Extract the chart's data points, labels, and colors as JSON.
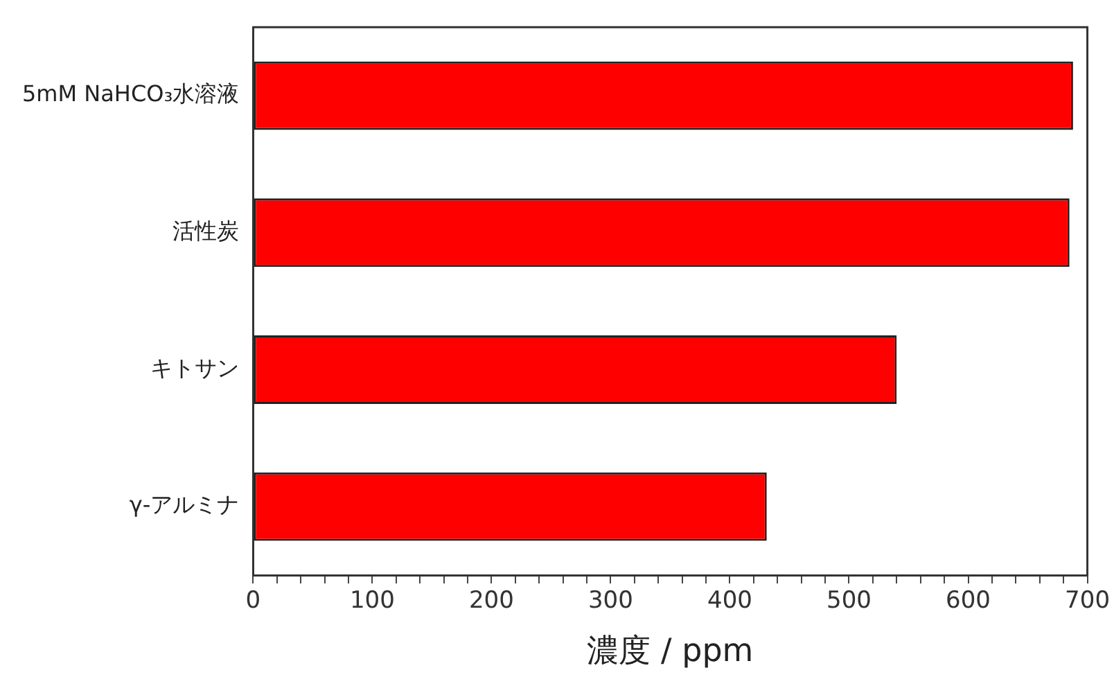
{
  "chart_data": {
    "type": "bar",
    "orientation": "horizontal",
    "xlabel": "濃度 / ppm",
    "categories": [
      "5mM NaHCO₃水溶液",
      "活性炭",
      "キトサン",
      "γ-アルミナ"
    ],
    "values": [
      688,
      685,
      540,
      431
    ],
    "color": "#ff0000",
    "xlim": [
      0,
      700
    ],
    "xticks": [
      0,
      {
        "value": 20,
        "label": null
      },
      {
        "value": 40,
        "label": null
      },
      {
        "value": 60,
        "label": null
      },
      {
        "value": 80,
        "label": null
      },
      100,
      {
        "value": 120,
        "label": null
      },
      {
        "value": 140,
        "label": null
      },
      {
        "value": 160,
        "label": null
      },
      {
        "value": 180,
        "label": null
      },
      200,
      {
        "value": 220,
        "label": null
      },
      {
        "value": 240,
        "label": null
      },
      {
        "value": 260,
        "label": null
      },
      {
        "value": 280,
        "label": null
      },
      300,
      {
        "value": 320,
        "label": null
      },
      {
        "value": 340,
        "label": null
      },
      {
        "value": 360,
        "label": null
      },
      {
        "value": 380,
        "label": null
      },
      400,
      {
        "value": 420,
        "label": null
      },
      {
        "value": 440,
        "label": null
      },
      {
        "value": 460,
        "label": null
      },
      {
        "value": 480,
        "label": null
      },
      500,
      {
        "value": 520,
        "label": null
      },
      {
        "value": 540,
        "label": null
      },
      {
        "value": 560,
        "label": null
      },
      {
        "value": 580,
        "label": null
      },
      600,
      {
        "value": 620,
        "label": null
      },
      {
        "value": 640,
        "label": null
      },
      {
        "value": 660,
        "label": null
      },
      {
        "value": 680,
        "label": null
      },
      700
    ],
    "grid": false,
    "legend": false
  }
}
